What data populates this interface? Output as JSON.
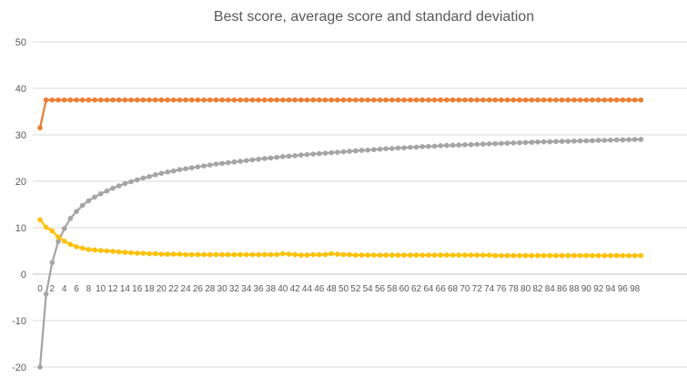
{
  "chart_data": {
    "type": "line",
    "title": "Best score, average score and standard deviation",
    "xlabel": "",
    "ylabel": "",
    "ylim": [
      -20,
      50
    ],
    "yticks": [
      -20,
      -10,
      0,
      10,
      20,
      30,
      40,
      50
    ],
    "xlim": [
      0,
      99
    ],
    "x_tick_labels": [
      0,
      2,
      4,
      6,
      8,
      10,
      12,
      14,
      16,
      18,
      20,
      22,
      24,
      26,
      28,
      30,
      32,
      34,
      36,
      38,
      40,
      42,
      44,
      46,
      48,
      50,
      52,
      54,
      56,
      58,
      60,
      62,
      64,
      66,
      68,
      70,
      72,
      74,
      76,
      78,
      80,
      82,
      84,
      86,
      88,
      90,
      92,
      94,
      96,
      98
    ],
    "grid": true,
    "legend": "none",
    "series": [
      {
        "color": "#ED7D31",
        "values": [
          31.5,
          37.5,
          37.5,
          37.5,
          37.5,
          37.5,
          37.5,
          37.5,
          37.5,
          37.5,
          37.5,
          37.5,
          37.5,
          37.5,
          37.5,
          37.5,
          37.5,
          37.5,
          37.5,
          37.5,
          37.5,
          37.5,
          37.5,
          37.5,
          37.5,
          37.5,
          37.5,
          37.5,
          37.5,
          37.5,
          37.5,
          37.5,
          37.5,
          37.5,
          37.5,
          37.5,
          37.5,
          37.5,
          37.5,
          37.5,
          37.5,
          37.5,
          37.5,
          37.5,
          37.5,
          37.5,
          37.5,
          37.5,
          37.5,
          37.5,
          37.5,
          37.5,
          37.5,
          37.5,
          37.5,
          37.5,
          37.5,
          37.5,
          37.5,
          37.5,
          37.5,
          37.5,
          37.5,
          37.5,
          37.5,
          37.5,
          37.5,
          37.5,
          37.5,
          37.5,
          37.5,
          37.5,
          37.5,
          37.5,
          37.5,
          37.5,
          37.5,
          37.5,
          37.5,
          37.5,
          37.5,
          37.5,
          37.5,
          37.5,
          37.5,
          37.5,
          37.5,
          37.5,
          37.5,
          37.5,
          37.5,
          37.5,
          37.5,
          37.5,
          37.5,
          37.5,
          37.5,
          37.5,
          37.5,
          37.5
        ]
      },
      {
        "color": "#A5A5A5",
        "values": [
          -20,
          -4.3,
          2.5,
          7,
          9.8,
          12,
          13.5,
          14.8,
          15.8,
          16.6,
          17.3,
          17.9,
          18.5,
          19.0,
          19.5,
          19.9,
          20.3,
          20.7,
          21.0,
          21.4,
          21.7,
          22.0,
          22.2,
          22.5,
          22.7,
          22.9,
          23.1,
          23.3,
          23.5,
          23.7,
          23.85,
          24.0,
          24.15,
          24.3,
          24.45,
          24.6,
          24.75,
          24.9,
          25.0,
          25.15,
          25.3,
          25.4,
          25.5,
          25.65,
          25.75,
          25.85,
          25.95,
          26.05,
          26.15,
          26.25,
          26.35,
          26.45,
          26.55,
          26.65,
          26.7,
          26.8,
          26.9,
          27.0,
          27.05,
          27.15,
          27.2,
          27.3,
          27.35,
          27.45,
          27.5,
          27.55,
          27.65,
          27.7,
          27.75,
          27.8,
          27.85,
          27.9,
          27.95,
          28.0,
          28.05,
          28.1,
          28.15,
          28.2,
          28.25,
          28.3,
          28.35,
          28.4,
          28.45,
          28.5,
          28.5,
          28.55,
          28.6,
          28.6,
          28.65,
          28.7,
          28.7,
          28.75,
          28.8,
          28.8,
          28.85,
          28.9,
          28.9,
          28.95,
          29.0,
          29.0
        ]
      },
      {
        "color": "#FFC000",
        "values": [
          11.7,
          10.1,
          9.3,
          8.0,
          7.1,
          6.4,
          5.9,
          5.6,
          5.3,
          5.2,
          5.1,
          5.0,
          4.9,
          4.8,
          4.7,
          4.6,
          4.5,
          4.5,
          4.4,
          4.4,
          4.3,
          4.3,
          4.3,
          4.3,
          4.2,
          4.2,
          4.2,
          4.2,
          4.2,
          4.2,
          4.2,
          4.2,
          4.2,
          4.2,
          4.2,
          4.2,
          4.2,
          4.2,
          4.2,
          4.2,
          4.4,
          4.3,
          4.2,
          4.1,
          4.1,
          4.2,
          4.2,
          4.2,
          4.4,
          4.3,
          4.2,
          4.2,
          4.1,
          4.1,
          4.1,
          4.1,
          4.1,
          4.1,
          4.1,
          4.1,
          4.1,
          4.1,
          4.1,
          4.1,
          4.1,
          4.1,
          4.1,
          4.1,
          4.1,
          4.1,
          4.1,
          4.1,
          4.1,
          4.1,
          4.1,
          4.0,
          4.0,
          4.0,
          4.0,
          4.0,
          4.0,
          4.0,
          4.0,
          4.0,
          4.0,
          4.0,
          4.0,
          4.0,
          4.0,
          4.0,
          4.0,
          4.0,
          4.0,
          4.0,
          4.0,
          4.0,
          4.0,
          4.0,
          4.0,
          4.0
        ]
      }
    ]
  }
}
